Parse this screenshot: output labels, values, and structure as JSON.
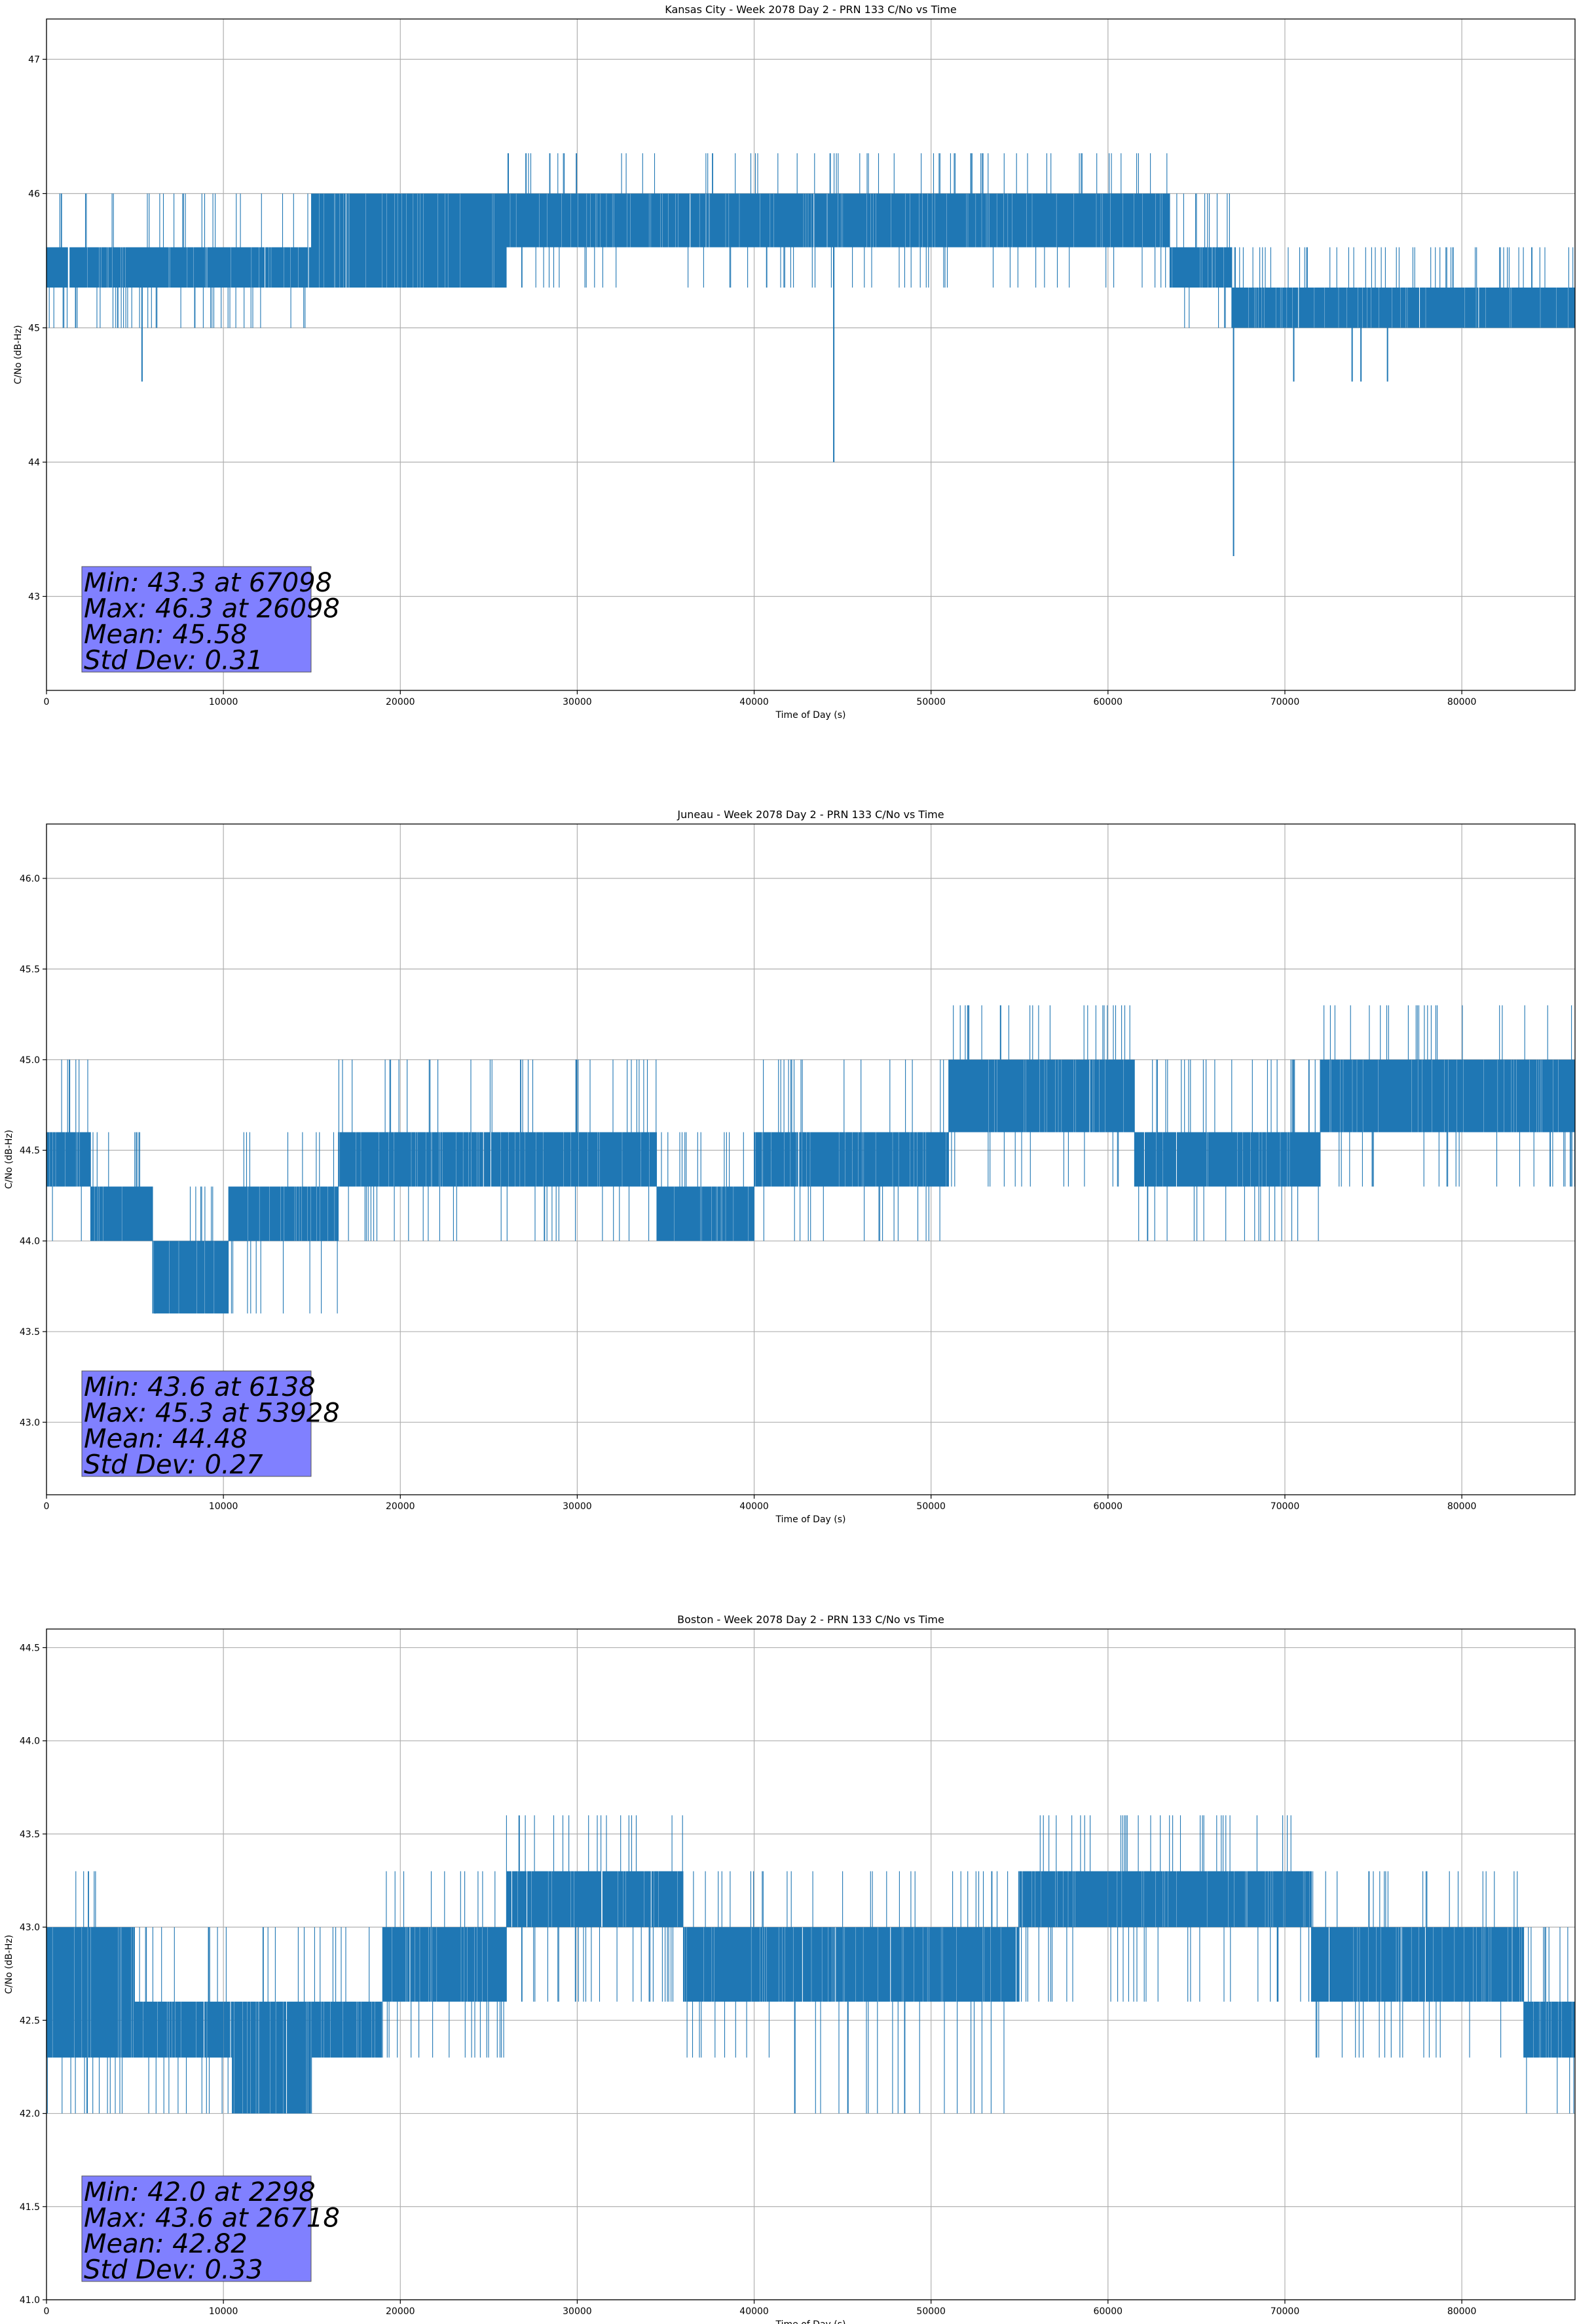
{
  "chart_data": [
    {
      "type": "line",
      "title": "Kansas City - Week 2078 Day 2 - PRN 133 C/No vs Time",
      "xlabel": "Time of Day (s)",
      "ylabel": "C/No (dB-Hz)",
      "xlim": [
        0,
        86400
      ],
      "ylim": [
        42.3,
        47.3
      ],
      "xticks": [
        0,
        10000,
        20000,
        30000,
        40000,
        50000,
        60000,
        70000,
        80000
      ],
      "yticks": [
        43,
        44,
        45,
        46,
        47
      ],
      "ytick_labels": [
        "43",
        "44",
        "45",
        "46",
        "47"
      ],
      "grid": true,
      "series_color": "#1f77b4",
      "series": [
        {
          "name": "C/No",
          "segments": [
            {
              "x": [
                0,
                15000
              ],
              "low": 45.3,
              "high": 45.6,
              "spike_low": 45.0,
              "spike_high": 46.0
            },
            {
              "x": [
                15000,
                26000
              ],
              "low": 45.3,
              "high": 46.0,
              "spike_low": 45.3,
              "spike_high": 46.0
            },
            {
              "x": [
                26000,
                44000
              ],
              "low": 45.6,
              "high": 46.0,
              "spike_low": 45.3,
              "spike_high": 46.3
            },
            {
              "x": [
                44000,
                63500
              ],
              "low": 45.6,
              "high": 46.0,
              "spike_low": 45.3,
              "spike_high": 46.3
            },
            {
              "x": [
                63500,
                67000
              ],
              "low": 45.3,
              "high": 45.6,
              "spike_low": 45.0,
              "spike_high": 46.0
            },
            {
              "x": [
                67000,
                86400
              ],
              "low": 45.0,
              "high": 45.3,
              "spike_low": 45.0,
              "spike_high": 45.6
            }
          ],
          "outliers": [
            [
              5400,
              44.6
            ],
            [
              44500,
              44.0
            ],
            [
              67098,
              43.3
            ],
            [
              70500,
              44.6
            ],
            [
              73800,
              44.6
            ],
            [
              74300,
              44.6
            ],
            [
              75800,
              44.6
            ],
            [
              26098,
              46.3
            ]
          ]
        }
      ],
      "stats": {
        "line1": "Min: 43.3 at 67098",
        "line2": "Max: 46.3 at 26098",
        "line3": "Mean: 45.58",
        "line4": "Std Dev: 0.31"
      }
    },
    {
      "type": "line",
      "title": "Juneau - Week 2078 Day 2 - PRN 133 C/No vs Time",
      "xlabel": "Time of Day (s)",
      "ylabel": "C/No (dB-Hz)",
      "xlim": [
        0,
        86400
      ],
      "ylim": [
        42.6,
        46.3
      ],
      "xticks": [
        0,
        10000,
        20000,
        30000,
        40000,
        50000,
        60000,
        70000,
        80000
      ],
      "yticks": [
        43.0,
        43.5,
        44.0,
        44.5,
        45.0,
        45.5,
        46.0
      ],
      "ytick_labels": [
        "43.0",
        "43.5",
        "44.0",
        "44.5",
        "45.0",
        "45.5",
        "46.0"
      ],
      "grid": true,
      "series_color": "#1f77b4",
      "series": [
        {
          "name": "C/No",
          "segments": [
            {
              "x": [
                0,
                2500
              ],
              "low": 44.3,
              "high": 44.6,
              "spike_low": 44.0,
              "spike_high": 45.0
            },
            {
              "x": [
                2500,
                6000
              ],
              "low": 44.0,
              "high": 44.3,
              "spike_low": 44.0,
              "spike_high": 44.6
            },
            {
              "x": [
                6000,
                10300
              ],
              "low": 43.6,
              "high": 44.0,
              "spike_low": 43.6,
              "spike_high": 44.3
            },
            {
              "x": [
                10300,
                16500
              ],
              "low": 44.0,
              "high": 44.3,
              "spike_low": 43.6,
              "spike_high": 44.6
            },
            {
              "x": [
                16500,
                34500
              ],
              "low": 44.3,
              "high": 44.6,
              "spike_low": 44.0,
              "spike_high": 45.0
            },
            {
              "x": [
                34500,
                40000
              ],
              "low": 44.0,
              "high": 44.3,
              "spike_low": 44.0,
              "spike_high": 44.6
            },
            {
              "x": [
                40000,
                51000
              ],
              "low": 44.3,
              "high": 44.6,
              "spike_low": 44.0,
              "spike_high": 45.0
            },
            {
              "x": [
                51000,
                61500
              ],
              "low": 44.6,
              "high": 45.0,
              "spike_low": 44.3,
              "spike_high": 45.3
            },
            {
              "x": [
                61500,
                72000
              ],
              "low": 44.3,
              "high": 44.6,
              "spike_low": 44.0,
              "spike_high": 45.0
            },
            {
              "x": [
                72000,
                86400
              ],
              "low": 44.6,
              "high": 45.0,
              "spike_low": 44.3,
              "spike_high": 45.3
            }
          ],
          "outliers": [
            [
              6138,
              43.6
            ],
            [
              53928,
              45.3
            ],
            [
              1300,
              45.0
            ]
          ]
        }
      ],
      "stats": {
        "line1": "Min: 43.6 at 6138",
        "line2": "Max: 45.3 at 53928",
        "line3": "Mean: 44.48",
        "line4": "Std Dev: 0.27"
      }
    },
    {
      "type": "line",
      "title": "Boston - Week 2078 Day 2 - PRN 133 C/No vs Time",
      "xlabel": "Time of Day (s)",
      "ylabel": "C/No (dB-Hz)",
      "xlim": [
        0,
        86400
      ],
      "ylim": [
        41.0,
        44.6
      ],
      "xticks": [
        0,
        10000,
        20000,
        30000,
        40000,
        50000,
        60000,
        70000,
        80000
      ],
      "yticks": [
        41.0,
        41.5,
        42.0,
        42.5,
        43.0,
        43.5,
        44.0,
        44.5
      ],
      "ytick_labels": [
        "41.0",
        "41.5",
        "42.0",
        "42.5",
        "43.0",
        "43.5",
        "44.0",
        "44.5"
      ],
      "grid": true,
      "series_color": "#1f77b4",
      "series": [
        {
          "name": "C/No",
          "segments": [
            {
              "x": [
                0,
                5000
              ],
              "low": 42.3,
              "high": 43.0,
              "spike_low": 42.0,
              "spike_high": 43.3
            },
            {
              "x": [
                5000,
                10500
              ],
              "low": 42.3,
              "high": 42.6,
              "spike_low": 42.0,
              "spike_high": 43.0
            },
            {
              "x": [
                10500,
                15000
              ],
              "low": 42.0,
              "high": 42.6,
              "spike_low": 42.0,
              "spike_high": 43.0
            },
            {
              "x": [
                15000,
                19000
              ],
              "low": 42.3,
              "high": 42.6,
              "spike_low": 42.3,
              "spike_high": 43.0
            },
            {
              "x": [
                19000,
                26000
              ],
              "low": 42.6,
              "high": 43.0,
              "spike_low": 42.3,
              "spike_high": 43.3
            },
            {
              "x": [
                26000,
                36000
              ],
              "low": 43.0,
              "high": 43.3,
              "spike_low": 42.6,
              "spike_high": 43.6
            },
            {
              "x": [
                36000,
                41500
              ],
              "low": 42.6,
              "high": 43.0,
              "spike_low": 42.3,
              "spike_high": 43.3
            },
            {
              "x": [
                41500,
                55000
              ],
              "low": 42.6,
              "high": 43.0,
              "spike_low": 42.0,
              "spike_high": 43.3
            },
            {
              "x": [
                55000,
                71500
              ],
              "low": 43.0,
              "high": 43.3,
              "spike_low": 42.6,
              "spike_high": 43.6
            },
            {
              "x": [
                71500,
                83500
              ],
              "low": 42.6,
              "high": 43.0,
              "spike_low": 42.3,
              "spike_high": 43.3
            },
            {
              "x": [
                83500,
                86400
              ],
              "low": 42.3,
              "high": 42.6,
              "spike_low": 42.0,
              "spike_high": 43.0
            }
          ],
          "outliers": [
            [
              2298,
              42.0
            ],
            [
              26718,
              43.6
            ],
            [
              42300,
              42.0
            ],
            [
              45300,
              42.0
            ]
          ]
        }
      ],
      "stats": {
        "line1": "Min: 42.0 at 2298",
        "line2": "Max: 43.6 at 26718",
        "line3": "Mean: 42.82",
        "line4": "Std Dev: 0.33"
      }
    }
  ]
}
